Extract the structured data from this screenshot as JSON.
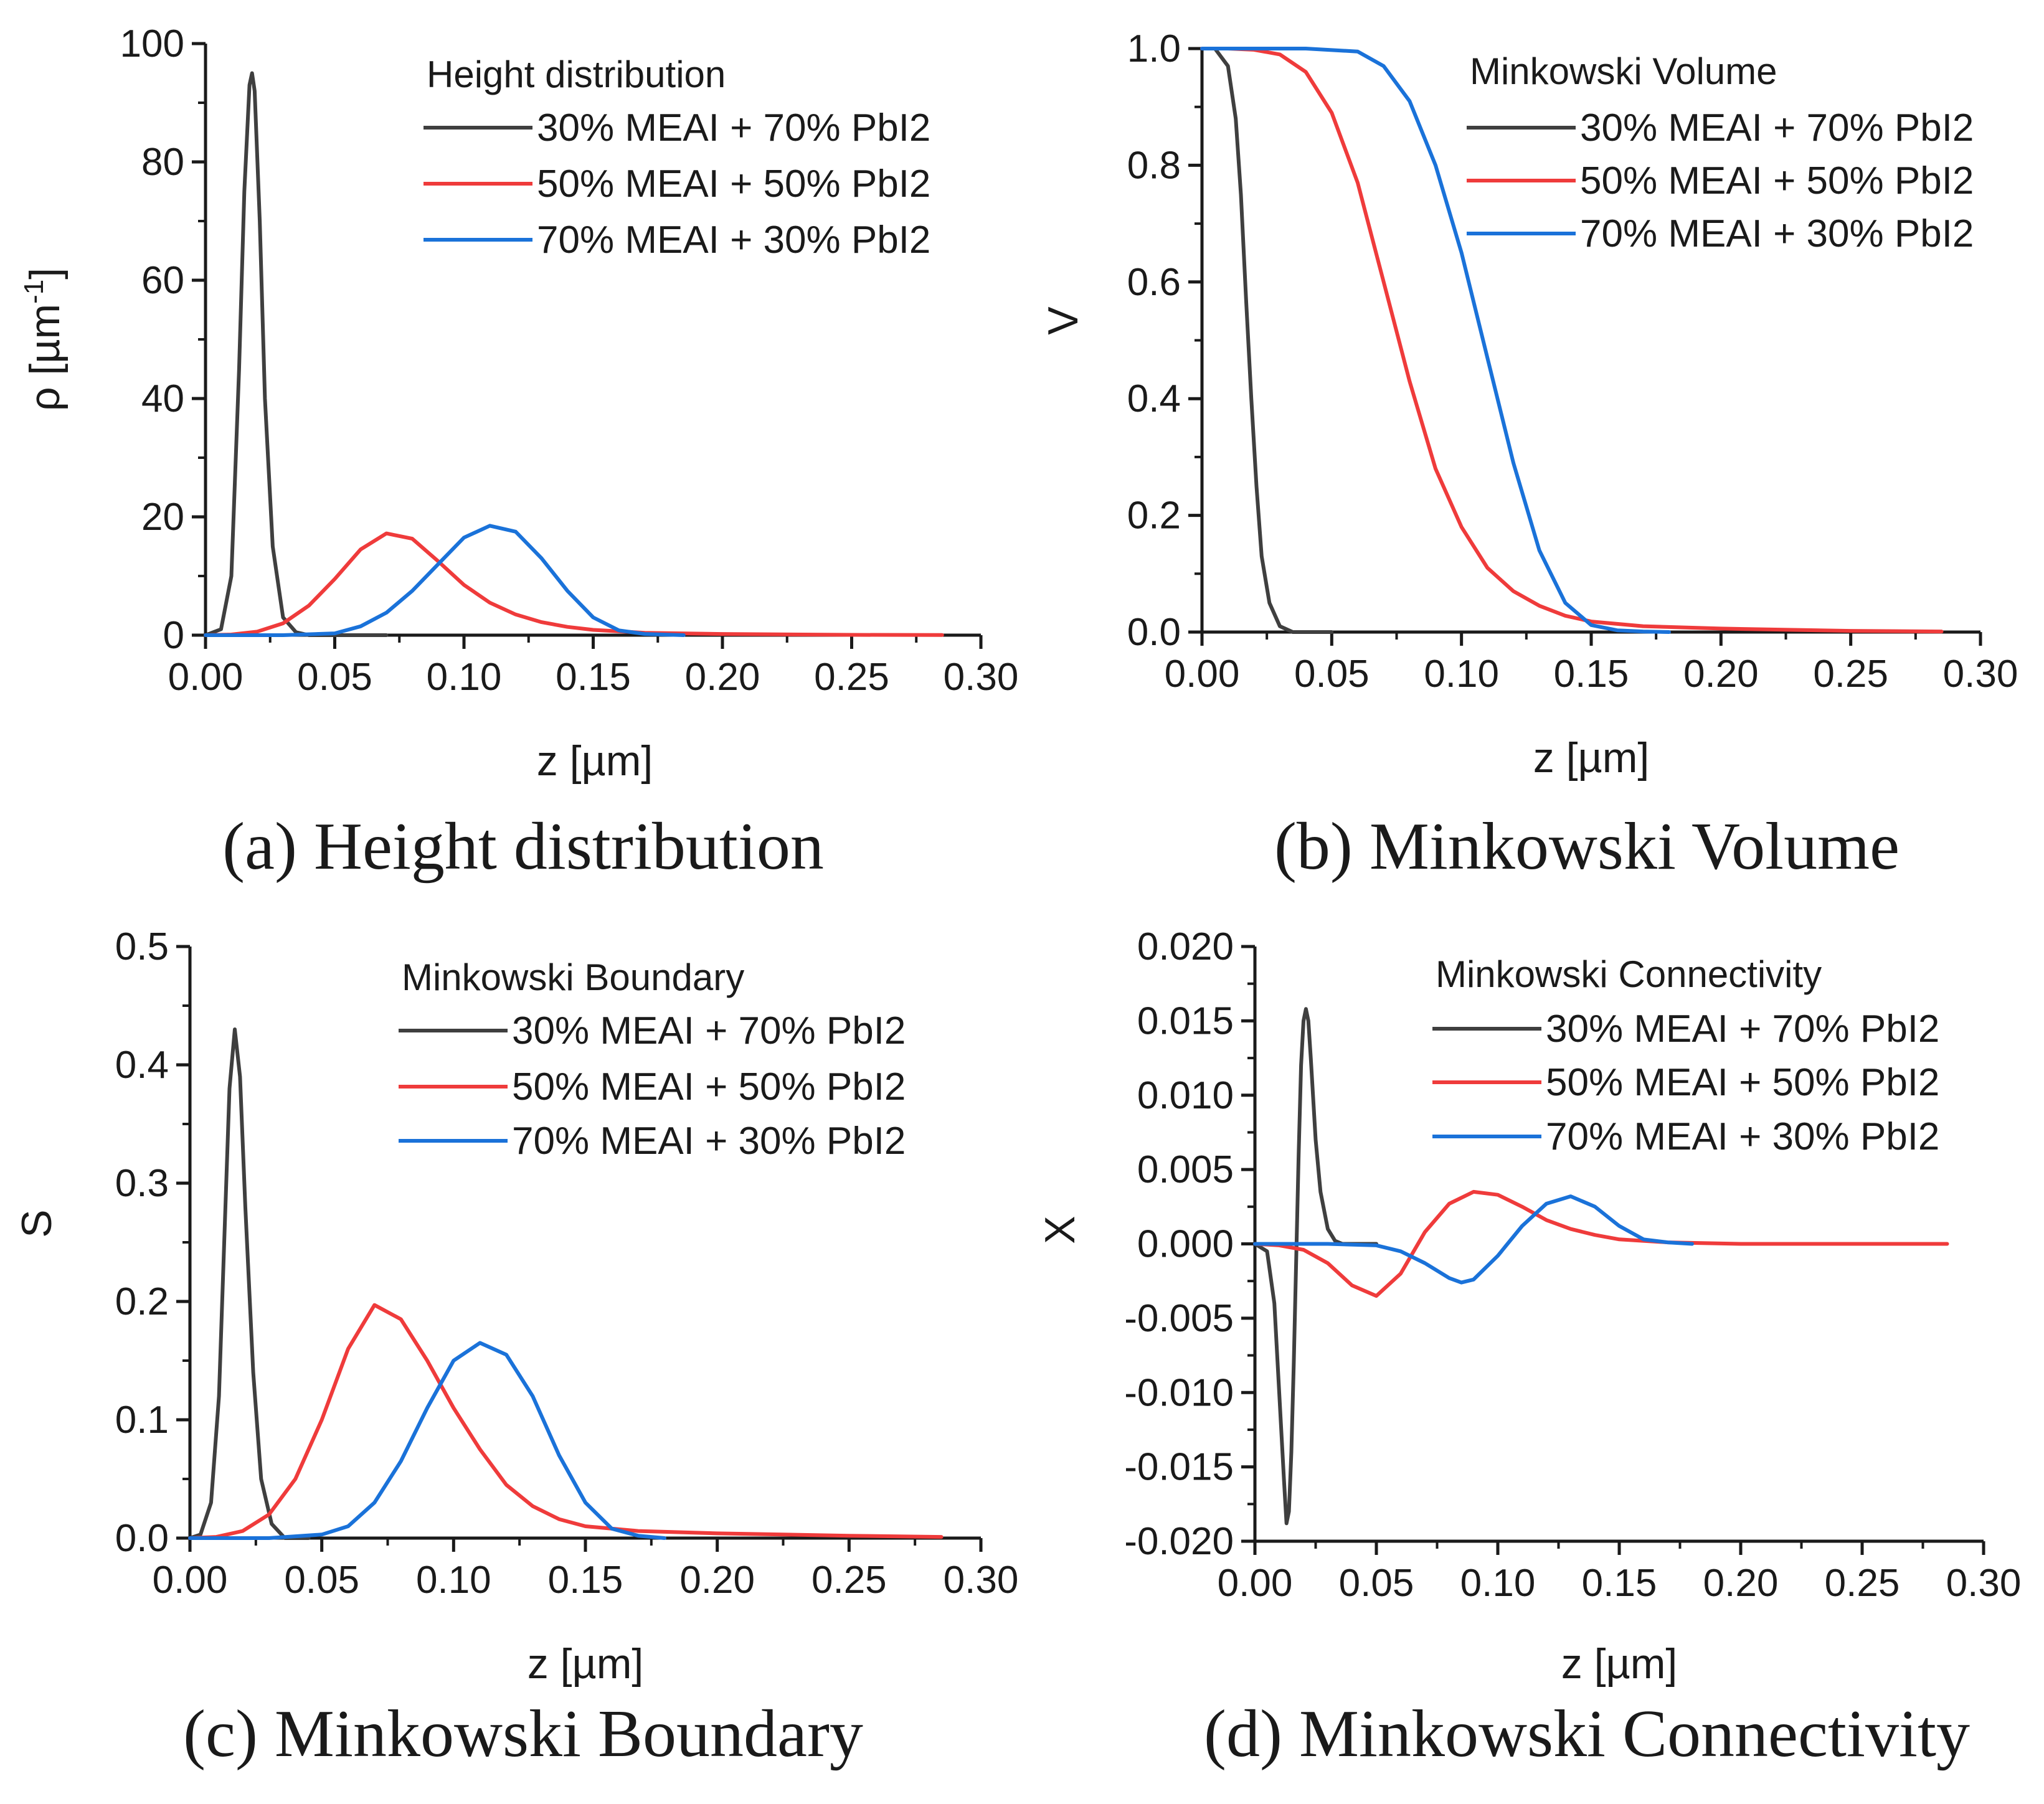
{
  "colors": {
    "series_30_70": "#3f3f3f",
    "series_50_50": "#ef3b3b",
    "series_70_30": "#1a72d9",
    "axis": "#1a1a1a"
  },
  "chart_data": [
    {
      "id": "a",
      "type": "line",
      "caption": "(a) Height distribution",
      "legend_title": "Height distribution",
      "xlabel": "z [µm]",
      "ylabel": "ρ [µm",
      "ylabel_superscript": "-1",
      "ylabel_suffix": "]",
      "xlim": [
        0,
        0.3
      ],
      "ylim": [
        0,
        100
      ],
      "xticks": [
        0,
        0.05,
        0.1,
        0.15,
        0.2,
        0.25,
        0.3
      ],
      "xtick_labels": [
        "0.00",
        "0.05",
        "0.10",
        "0.15",
        "0.20",
        "0.25",
        "0.30"
      ],
      "yticks": [
        0,
        20,
        40,
        60,
        80,
        100
      ],
      "ytick_labels": [
        "0",
        "20",
        "40",
        "60",
        "80",
        "100"
      ],
      "legend_position": "top-right",
      "series": [
        {
          "name": "30% MEAI + 70% PbI2",
          "color_key": "series_30_70",
          "x": [
            0,
            0.006,
            0.01,
            0.013,
            0.015,
            0.017,
            0.018,
            0.019,
            0.021,
            0.023,
            0.026,
            0.03,
            0.035,
            0.04,
            0.05,
            0.07
          ],
          "y": [
            0,
            1,
            10,
            45,
            75,
            93,
            95,
            92,
            70,
            40,
            15,
            3,
            0.5,
            0,
            0,
            0
          ]
        },
        {
          "name": "50% MEAI + 50% PbI2",
          "color_key": "series_50_50",
          "x": [
            0,
            0.01,
            0.02,
            0.03,
            0.04,
            0.05,
            0.06,
            0.07,
            0.08,
            0.09,
            0.1,
            0.11,
            0.12,
            0.13,
            0.14,
            0.15,
            0.17,
            0.2,
            0.25,
            0.285
          ],
          "y": [
            0,
            0.1,
            0.6,
            2,
            5,
            9.5,
            14.5,
            17.2,
            16.3,
            12.5,
            8.5,
            5.5,
            3.5,
            2.2,
            1.4,
            0.9,
            0.4,
            0.2,
            0.05,
            0.02
          ]
        },
        {
          "name": "70% MEAI + 30% PbI2",
          "color_key": "series_70_30",
          "x": [
            0,
            0.03,
            0.05,
            0.06,
            0.07,
            0.08,
            0.09,
            0.1,
            0.11,
            0.12,
            0.13,
            0.14,
            0.15,
            0.16,
            0.17,
            0.185
          ],
          "y": [
            0,
            0,
            0.3,
            1.5,
            3.8,
            7.5,
            12,
            16.5,
            18.5,
            17.5,
            13,
            7.5,
            3,
            0.8,
            0.2,
            0
          ]
        }
      ]
    },
    {
      "id": "b",
      "type": "line",
      "caption": "(b) Minkowski Volume",
      "legend_title": "Minkowski Volume",
      "xlabel": "z [µm]",
      "ylabel": "V",
      "xlim": [
        0,
        0.3
      ],
      "ylim": [
        0,
        1
      ],
      "xticks": [
        0,
        0.05,
        0.1,
        0.15,
        0.2,
        0.25,
        0.3
      ],
      "xtick_labels": [
        "0.00",
        "0.05",
        "0.10",
        "0.15",
        "0.20",
        "0.25",
        "0.30"
      ],
      "yticks": [
        0,
        0.2,
        0.4,
        0.6,
        0.8,
        1.0
      ],
      "ytick_labels": [
        "0.0",
        "0.2",
        "0.4",
        "0.6",
        "0.8",
        "1.0"
      ],
      "legend_position": "top-right",
      "series": [
        {
          "name": "30% MEAI + 70% PbI2",
          "color_key": "series_30_70",
          "x": [
            0,
            0.005,
            0.01,
            0.013,
            0.015,
            0.017,
            0.019,
            0.021,
            0.023,
            0.026,
            0.03,
            0.035,
            0.04,
            0.05
          ],
          "y": [
            1,
            1,
            0.97,
            0.88,
            0.75,
            0.57,
            0.4,
            0.25,
            0.13,
            0.05,
            0.01,
            0,
            0,
            0
          ]
        },
        {
          "name": "50% MEAI + 50% PbI2",
          "color_key": "series_50_50",
          "x": [
            0,
            0.01,
            0.02,
            0.03,
            0.04,
            0.05,
            0.06,
            0.07,
            0.08,
            0.09,
            0.1,
            0.11,
            0.12,
            0.13,
            0.14,
            0.15,
            0.17,
            0.2,
            0.25,
            0.285
          ],
          "y": [
            1,
            1,
            0.998,
            0.99,
            0.96,
            0.89,
            0.77,
            0.6,
            0.43,
            0.28,
            0.18,
            0.11,
            0.07,
            0.045,
            0.028,
            0.018,
            0.01,
            0.006,
            0.002,
            0.001
          ]
        },
        {
          "name": "70% MEAI + 30% PbI2",
          "color_key": "series_70_30",
          "x": [
            0,
            0.04,
            0.06,
            0.07,
            0.08,
            0.09,
            0.1,
            0.11,
            0.12,
            0.13,
            0.14,
            0.15,
            0.16,
            0.17,
            0.18
          ],
          "y": [
            1,
            1,
            0.995,
            0.97,
            0.91,
            0.8,
            0.65,
            0.47,
            0.29,
            0.14,
            0.05,
            0.012,
            0.003,
            0.001,
            0
          ]
        }
      ]
    },
    {
      "id": "c",
      "type": "line",
      "caption": "(c) Minkowski Boundary",
      "legend_title": "Minkowski Boundary",
      "xlabel": "z [µm]",
      "ylabel": "S",
      "xlim": [
        0,
        0.3
      ],
      "ylim": [
        0,
        0.5
      ],
      "xticks": [
        0,
        0.05,
        0.1,
        0.15,
        0.2,
        0.25,
        0.3
      ],
      "xtick_labels": [
        "0.00",
        "0.05",
        "0.10",
        "0.15",
        "0.20",
        "0.25",
        "0.30"
      ],
      "yticks": [
        0,
        0.1,
        0.2,
        0.3,
        0.4,
        0.5
      ],
      "ytick_labels": [
        "0.0",
        "0.1",
        "0.2",
        "0.3",
        "0.4",
        "0.5"
      ],
      "legend_position": "top-right",
      "series": [
        {
          "name": "30% MEAI + 70% PbI2",
          "color_key": "series_30_70",
          "x": [
            0,
            0.004,
            0.008,
            0.011,
            0.013,
            0.015,
            0.017,
            0.019,
            0.021,
            0.024,
            0.027,
            0.031,
            0.036,
            0.045
          ],
          "y": [
            0,
            0.003,
            0.03,
            0.12,
            0.25,
            0.38,
            0.43,
            0.39,
            0.28,
            0.14,
            0.05,
            0.012,
            0,
            0
          ]
        },
        {
          "name": "50% MEAI + 50% PbI2",
          "color_key": "series_50_50",
          "x": [
            0,
            0.01,
            0.02,
            0.03,
            0.04,
            0.05,
            0.06,
            0.07,
            0.08,
            0.09,
            0.1,
            0.11,
            0.12,
            0.13,
            0.14,
            0.15,
            0.17,
            0.2,
            0.25,
            0.285
          ],
          "y": [
            0,
            0.001,
            0.006,
            0.02,
            0.05,
            0.1,
            0.16,
            0.197,
            0.185,
            0.15,
            0.11,
            0.075,
            0.045,
            0.027,
            0.016,
            0.01,
            0.006,
            0.004,
            0.002,
            0.001
          ]
        },
        {
          "name": "70% MEAI + 30% PbI2",
          "color_key": "series_70_30",
          "x": [
            0,
            0.03,
            0.05,
            0.06,
            0.07,
            0.08,
            0.09,
            0.1,
            0.11,
            0.12,
            0.13,
            0.14,
            0.15,
            0.16,
            0.17,
            0.18
          ],
          "y": [
            0,
            0,
            0.003,
            0.01,
            0.03,
            0.065,
            0.11,
            0.15,
            0.165,
            0.155,
            0.12,
            0.07,
            0.03,
            0.008,
            0.002,
            0
          ]
        }
      ]
    },
    {
      "id": "d",
      "type": "line",
      "caption": "(d) Minkowski Connectivity",
      "legend_title": "Minkowski Connectivity",
      "xlabel": "z [µm]",
      "ylabel": "X",
      "xlim": [
        0,
        0.3
      ],
      "ylim": [
        -0.02,
        0.02
      ],
      "xticks": [
        0,
        0.05,
        0.1,
        0.15,
        0.2,
        0.25,
        0.3
      ],
      "xtick_labels": [
        "0.00",
        "0.05",
        "0.10",
        "0.15",
        "0.20",
        "0.25",
        "0.30"
      ],
      "yticks": [
        -0.02,
        -0.015,
        -0.01,
        -0.005,
        0,
        0.005,
        0.01,
        0.015,
        0.02
      ],
      "ytick_labels": [
        "-0.020",
        "-0.015",
        "-0.010",
        "-0.005",
        "0.000",
        "0.005",
        "0.010",
        "0.015",
        "0.020"
      ],
      "legend_position": "top-right",
      "series": [
        {
          "name": "30% MEAI + 70% PbI2",
          "color_key": "series_30_70",
          "x": [
            0,
            0.005,
            0.008,
            0.01,
            0.012,
            0.013,
            0.014,
            0.015,
            0.016,
            0.017,
            0.018,
            0.019,
            0.02,
            0.021,
            0.022,
            0.023,
            0.025,
            0.027,
            0.03,
            0.033,
            0.036,
            0.04,
            0.05
          ],
          "y": [
            0,
            -0.0005,
            -0.004,
            -0.01,
            -0.016,
            -0.0188,
            -0.018,
            -0.014,
            -0.008,
            -0.001,
            0.006,
            0.012,
            0.015,
            0.0158,
            0.015,
            0.0125,
            0.007,
            0.0035,
            0.001,
            0.0002,
            0,
            0,
            0
          ]
        },
        {
          "name": "50% MEAI + 50% PbI2",
          "color_key": "series_50_50",
          "x": [
            0,
            0.01,
            0.02,
            0.03,
            0.04,
            0.05,
            0.06,
            0.07,
            0.08,
            0.09,
            0.1,
            0.11,
            0.12,
            0.13,
            0.14,
            0.15,
            0.17,
            0.2,
            0.25,
            0.285
          ],
          "y": [
            0,
            -0.0001,
            -0.0004,
            -0.0013,
            -0.0028,
            -0.0035,
            -0.002,
            0.0008,
            0.0027,
            0.0035,
            0.0033,
            0.0025,
            0.0016,
            0.001,
            0.0006,
            0.0003,
            0.0001,
            0,
            0,
            0
          ]
        },
        {
          "name": "70% MEAI + 30% PbI2",
          "color_key": "series_70_30",
          "x": [
            0,
            0.03,
            0.05,
            0.06,
            0.07,
            0.08,
            0.085,
            0.09,
            0.1,
            0.11,
            0.12,
            0.13,
            0.14,
            0.15,
            0.16,
            0.17,
            0.18
          ],
          "y": [
            0,
            0,
            -0.0001,
            -0.0005,
            -0.0013,
            -0.0023,
            -0.0026,
            -0.0024,
            -0.0008,
            0.0012,
            0.0027,
            0.0032,
            0.0025,
            0.0012,
            0.0003,
            0.0001,
            0
          ]
        }
      ]
    }
  ]
}
